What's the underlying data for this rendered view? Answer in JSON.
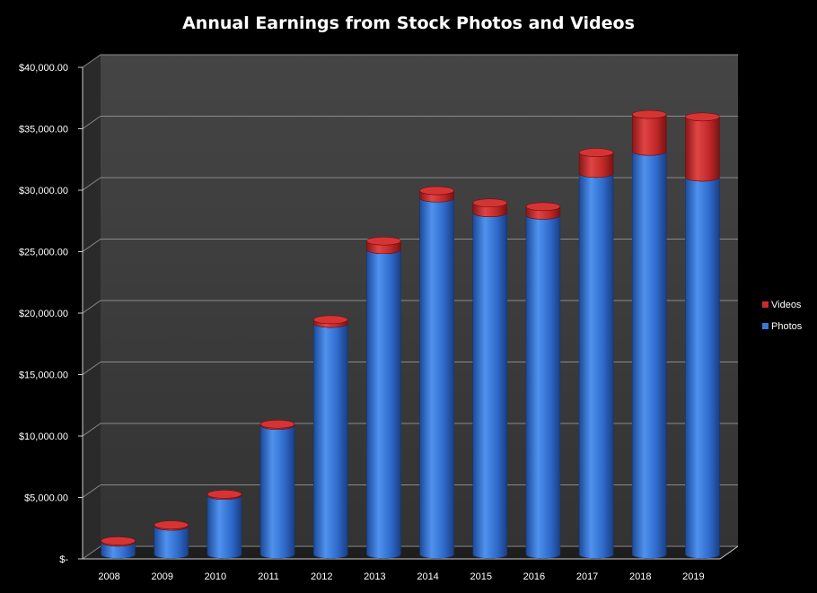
{
  "chart_data": {
    "type": "bar",
    "stacked": true,
    "style": "3d-cylinder",
    "title": "Annual Earnings from Stock Photos and Videos",
    "xlabel": "",
    "ylabel": "",
    "categories": [
      "2008",
      "2009",
      "2010",
      "2011",
      "2012",
      "2013",
      "2014",
      "2015",
      "2016",
      "2017",
      "2018",
      "2019"
    ],
    "series": [
      {
        "name": "Photos",
        "color": "#3a78d6",
        "values": [
          1000,
          2300,
          4800,
          10500,
          18800,
          24800,
          29000,
          27800,
          27600,
          31000,
          32800,
          30700
        ]
      },
      {
        "name": "Videos",
        "color": "#cc2a2a",
        "values": [
          100,
          100,
          100,
          100,
          300,
          700,
          600,
          800,
          700,
          1700,
          3000,
          4900
        ]
      }
    ],
    "ylim": [
      0,
      40000
    ],
    "ytick_labels": [
      "$-",
      "$5,000.00",
      "$10,000.00",
      "$15,000.00",
      "$20,000.00",
      "$25,000.00",
      "$30,000.00",
      "$35,000.00",
      "$40,000.00"
    ],
    "grid": true,
    "legend_position": "right",
    "background_color": "#000000",
    "plot_wall_color": "#3b3b3b"
  }
}
